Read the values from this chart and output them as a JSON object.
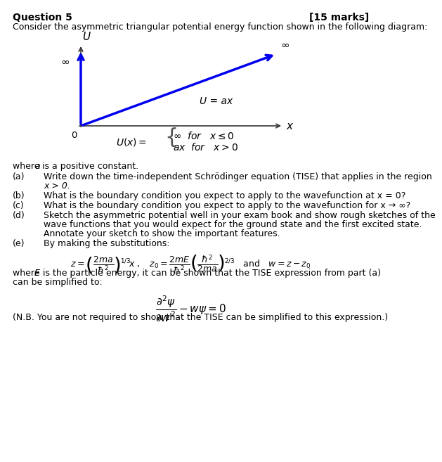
{
  "title_left": "Question 5",
  "title_right": "[15 marks]",
  "intro_text": "Consider the asymmetric triangular potential energy function shown in the following diagram:",
  "diagram": {
    "blue_color": "#0000EE",
    "axis_color": "#333333",
    "U_label": "U",
    "x_label": "x",
    "zero_label": "0",
    "inf_left": "∞",
    "inf_right": "∞",
    "U_eq_ax": "U = ax"
  },
  "where_text_1": "where ",
  "where_text_a": "a",
  "where_text_2": " is a positive constant.",
  "parts": [
    "(a)",
    "(b)",
    "(c)",
    "(d)",
    "(e)"
  ],
  "part_a_line1": "Write down the time-independent Schrödinger equation (TISE) that applies in the region",
  "part_a_line2": "x > 0.",
  "part_b": "What is the boundary condition you expect to apply to the wavefunction at x = 0?",
  "part_c": "What is the boundary condition you expect to apply to the wavefunction for x → ∞?",
  "part_d_line1": "Sketch the asymmetric potential well in your exam book and show rough sketches of the",
  "part_d_line2": "wave functions that you would expect for the ground state and the first excited state.",
  "part_d_line3": "Annotate your sketch to show the important features.",
  "part_e": "By making the substitutions:",
  "where_E_1": "where ",
  "where_E_E": "E",
  "where_E_2": " is the particle energy, it can be shown that the TISE expression from part (a)",
  "simplified": "can be simplified to:",
  "nb": "(N.B. You are not required to show that the TISE can be simplified to this expression.)",
  "bg_color": "#FFFFFF",
  "text_color": "#000000",
  "fs_body": 9.0,
  "fs_title": 10.0
}
